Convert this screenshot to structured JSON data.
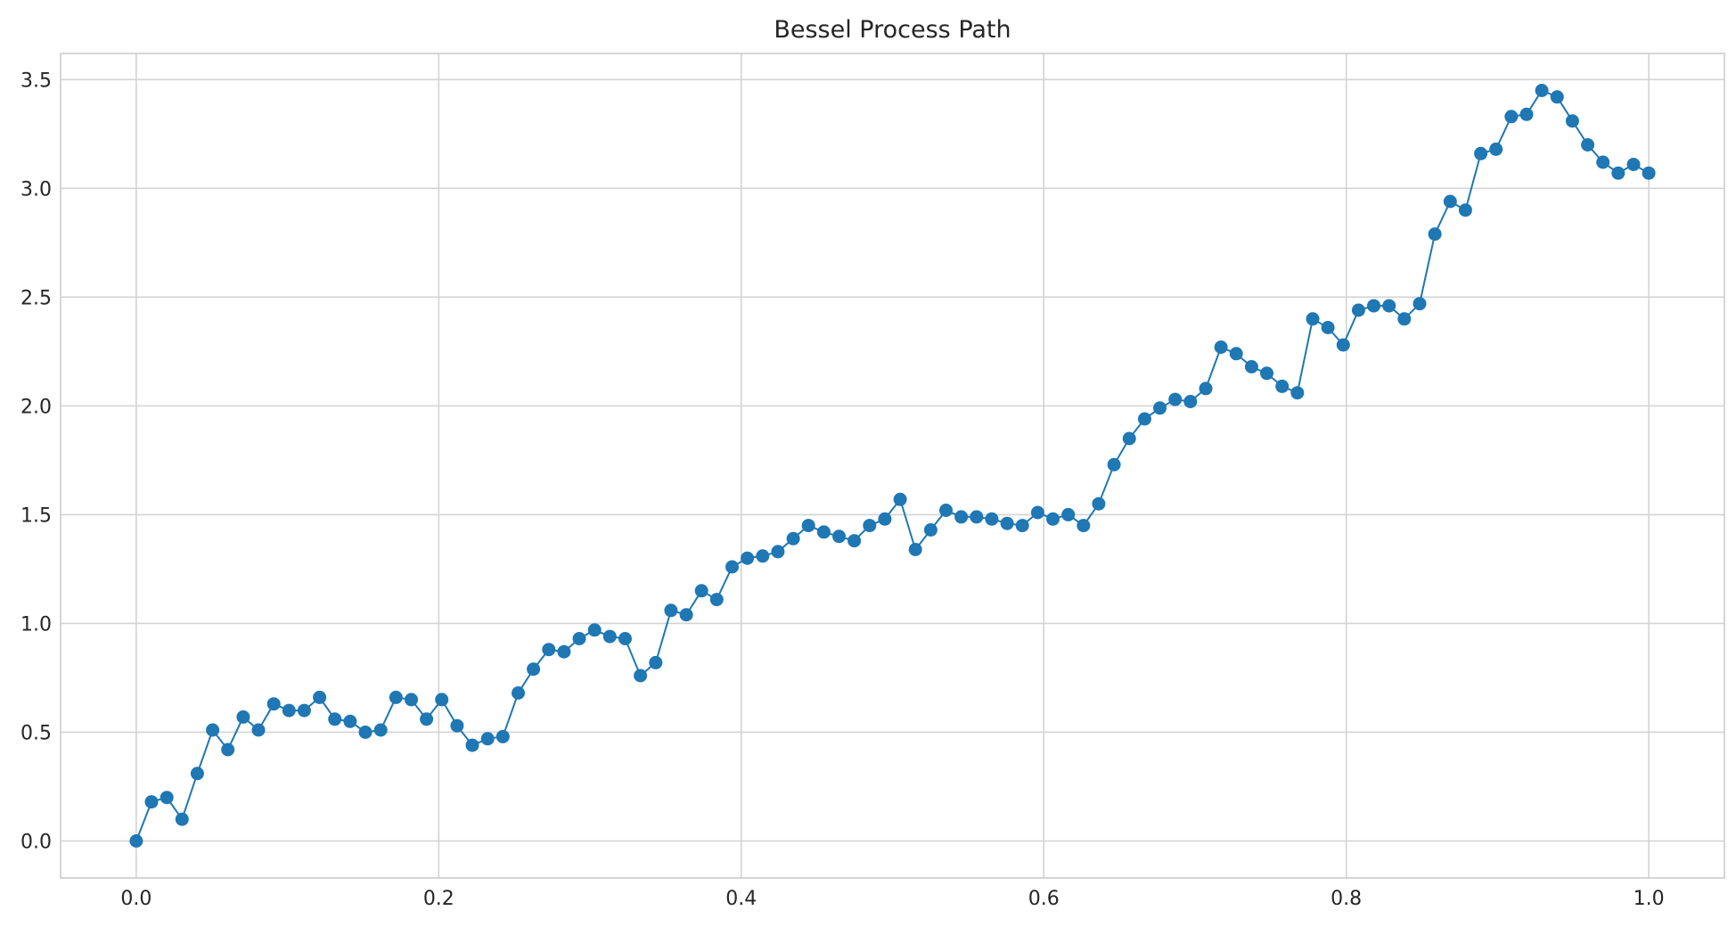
{
  "chart_data": {
    "type": "line",
    "title": "Bessel Process Path",
    "xlabel": "",
    "ylabel": "",
    "xlim": [
      -0.05,
      1.05
    ],
    "ylim": [
      -0.17,
      3.62
    ],
    "xticks": [
      0.0,
      0.2,
      0.4,
      0.6,
      0.8,
      1.0
    ],
    "xtick_labels": [
      "0.0",
      "0.2",
      "0.4",
      "0.6",
      "0.8",
      "1.0"
    ],
    "yticks": [
      0.0,
      0.5,
      1.0,
      1.5,
      2.0,
      2.5,
      3.0,
      3.5
    ],
    "ytick_labels": [
      "0.0",
      "0.5",
      "1.0",
      "1.5",
      "2.0",
      "2.5",
      "3.0",
      "3.5"
    ],
    "grid": true,
    "legend": "none",
    "series": [
      {
        "color": "#1f77b4",
        "marker": "circle",
        "x_start": 0.0,
        "x_end": 1.0,
        "values": [
          0.0,
          0.18,
          0.2,
          0.1,
          0.31,
          0.51,
          0.42,
          0.57,
          0.51,
          0.63,
          0.6,
          0.6,
          0.66,
          0.56,
          0.55,
          0.5,
          0.51,
          0.66,
          0.65,
          0.56,
          0.65,
          0.53,
          0.44,
          0.47,
          0.48,
          0.68,
          0.79,
          0.88,
          0.87,
          0.93,
          0.97,
          0.94,
          0.93,
          0.76,
          0.82,
          1.06,
          1.04,
          1.15,
          1.11,
          1.26,
          1.3,
          1.31,
          1.33,
          1.39,
          1.45,
          1.42,
          1.4,
          1.38,
          1.45,
          1.48,
          1.57,
          1.34,
          1.43,
          1.52,
          1.49,
          1.49,
          1.48,
          1.46,
          1.45,
          1.51,
          1.48,
          1.5,
          1.45,
          1.55,
          1.73,
          1.85,
          1.94,
          1.99,
          2.03,
          2.02,
          2.08,
          2.27,
          2.24,
          2.18,
          2.15,
          2.09,
          2.06,
          2.4,
          2.36,
          2.28,
          2.44,
          2.46,
          2.46,
          2.4,
          2.47,
          2.79,
          2.94,
          2.9,
          3.16,
          3.18,
          3.33,
          3.34,
          3.45,
          3.42,
          3.31,
          3.2,
          3.12,
          3.07,
          3.11,
          3.07
        ]
      }
    ]
  }
}
